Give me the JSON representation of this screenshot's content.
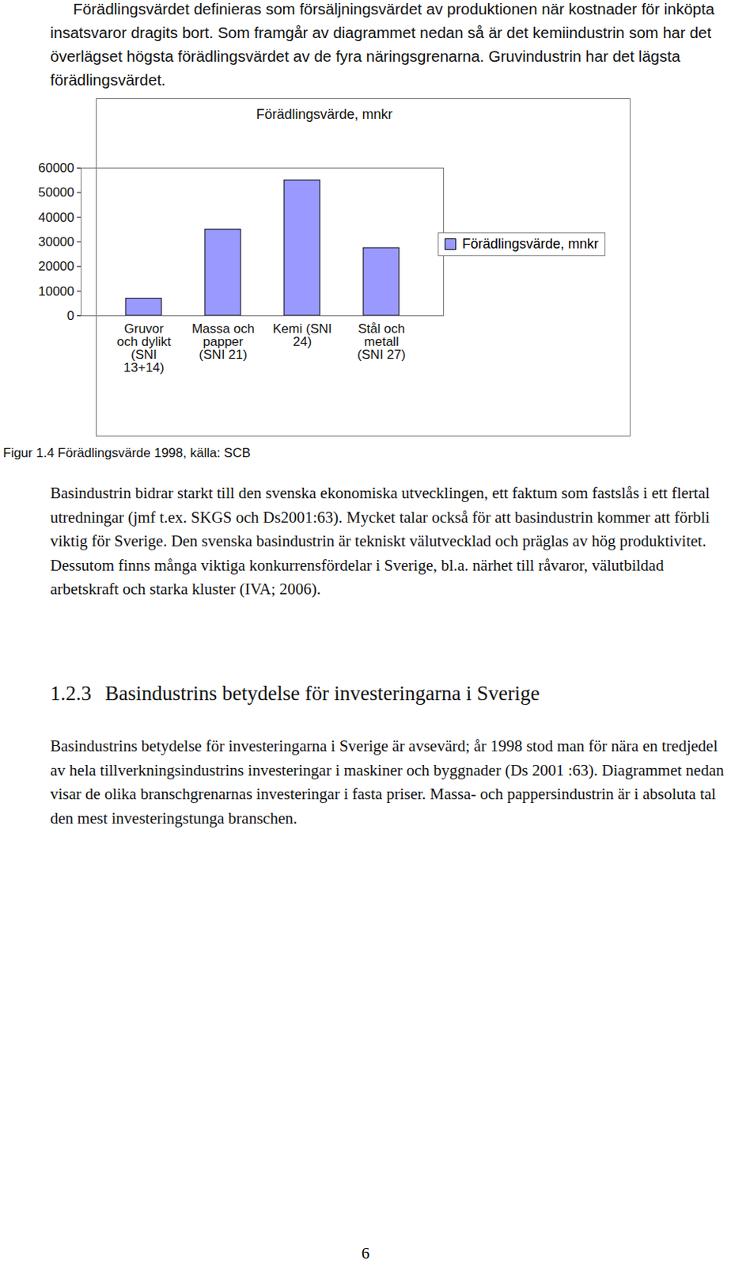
{
  "paragraph_1": "Förädlingsvärdet definieras som försäljningsvärdet av produktionen när kostnader för inköpta insatsvaror dragits bort. Som framgår av diagrammet nedan så är det kemiindustrin som har det överlägset högsta förädlingsvärdet av de fyra näringsgrenarna. Gruvindustrin har det lägsta förädlingsvärdet.",
  "chart_data": {
    "type": "bar",
    "title": "Förädlingsvärde, mnkr",
    "categories": [
      "Gruvor och dylikt (SNI 13+14)",
      "Massa och papper (SNI 21)",
      "Kemi (SNI 24)",
      "Stål och metall (SNI 27)"
    ],
    "series": [
      {
        "name": "Förädlingsvärde, mnkr",
        "color": "#9999ff",
        "values": [
          7000,
          35000,
          55000,
          27500
        ]
      }
    ],
    "ylim": [
      0,
      60000
    ],
    "yticks": [
      0,
      10000,
      20000,
      30000,
      40000,
      50000,
      60000
    ],
    "grid": false,
    "legend": "right"
  },
  "caption": "Figur 1.4 Förädlingsvärde 1998, källa: SCB",
  "paragraph_2": "Basindustrin bidrar starkt till den svenska ekonomiska utvecklingen, ett faktum som fastslås i ett flertal utredningar (jmf t.ex. SKGS och Ds2001:63). Mycket talar också för att basindustrin kommer att förbli viktig för Sverige. Den svenska basindustrin är tekniskt välutvecklad och präglas av hög produktivitet. Dessutom finns många viktiga konkurrensfördelar i Sverige, bl.a. närhet till råvaror, välutbildad arbetskraft och starka kluster (IVA; 2006).",
  "heading": {
    "number": "1.2.3",
    "text": "Basindustrins betydelse för investeringarna i Sverige"
  },
  "paragraph_3": "Basindustrins betydelse för investeringarna i Sverige är avsevärd; år 1998 stod man för nära en tredjedel av hela tillverkningsindustrins investeringar i maskiner och byggnader (Ds 2001 :63). Diagrammet nedan visar de olika branschgrenarnas investeringar i fasta priser. Massa- och pappersindustrin är i absoluta tal den mest investeringstunga branschen.",
  "page_number": "6"
}
